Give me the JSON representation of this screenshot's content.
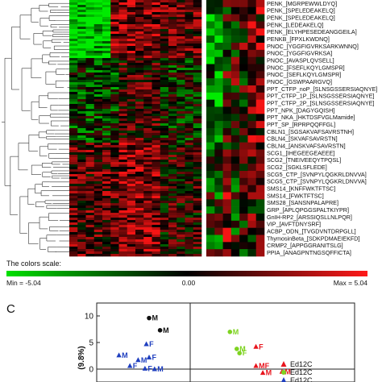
{
  "heatmap": {
    "row_labels": [
      "PENK_[MGRPEWWLDYQ]",
      "PENK_[SPELEDEAKELQ]",
      "PENK_[SPELEDEAKELQ]",
      "PENK_[LEDEAKELQ]",
      "PENK_[ELYHPESEDEANGGEILA]",
      "PENKB_[FPXLKWDNQ]",
      "PNOC_[YGGFIGVRKSARKWNNQ]",
      "PNOC_[YGGFIGVRKSA]",
      "PNOC_[AVASPLQVSELL]",
      "PNOC_[FSEFLKQYLGMSPR]",
      "PNOC_[SEFLKQYLGMSPR]",
      "PNOC_[GSWPAARGVQ]",
      "PPT_CTFP_noP_[SLNSGSSERSIAQNYE]",
      "PPT_CTFP_1P_[SLNSGSSERSIAQNYE]",
      "PPT_CTFP_2P_[SLNSGSSERSIAQNYE]",
      "PPT_NPK_[DAGYGQISH]",
      "PPT_NKA_[HKTDSFVGLMamide]",
      "PPT_SP_[RPRPQQFFGL]",
      "CBLN1_[SGSAKVAFSAVRSTNH]",
      "CBLN4_[SKVAFSAVRSTN]",
      "CBLN4_[ANSKVAFSAVRSTN]",
      "SCG1_[IHEGEEGEAEEE]",
      "SCG2_[TNEIVEEQYTPQSL]",
      "SCG2_[SGKLSFLEDE]",
      "SCG5_CTP_[SVNPYLQGKRLDNVVA]",
      "SCG5_CTP_[SVNPYLQGKRLDNVVA]",
      "SMS14_[KNFFWKTFTSC]",
      "SMS14_[FWKTFTSC]",
      "SMS28_[SANSNPALAPRE]",
      "GRP_[APLQPGGSPALTKIYPR]",
      "GnIH-RP2_[ARSSIQSLLNLPQR]",
      "VIP_[AVFTDNYSRF]",
      "ACBP_ODN_[TVGDVNTDRPGLL]",
      "ThymosinBeta_[SDKPDMAEIEKFD]",
      "CRMP2_[APPGGRANITSLG]",
      "PPIA_[ANAGPNTNGSQFFICTA]"
    ],
    "scale_title": "The colors scale:",
    "scale_min_label": "Min = -5.04",
    "scale_mid_label": "0.00",
    "scale_max_label": "Max = 5.04",
    "colors": {
      "low": "#00e000",
      "mid": "#000000",
      "high": "#ff1a1a"
    }
  },
  "panel_c": {
    "letter": "C",
    "y_axis_label": "(9.8%)",
    "y_ticks": [
      "10",
      "5",
      "0"
    ],
    "legend": [
      {
        "label": "Ed12C",
        "color": "#e8141c",
        "marker": "triangle"
      },
      {
        "label": "Ed12C",
        "color": "#7ed321",
        "marker": "circle"
      },
      {
        "label": "Ed12C",
        "color": "#1f3fbf",
        "marker": "triangle"
      }
    ],
    "points": [
      {
        "label": "M",
        "x": -3.0,
        "y": 9.6,
        "color": "#111111"
      },
      {
        "label": "M",
        "x": -2.2,
        "y": 7.3,
        "color": "#111111"
      },
      {
        "label": "F",
        "x": -3.2,
        "y": 4.7,
        "color": "#1f3fbf"
      },
      {
        "label": "M",
        "x": -5.2,
        "y": 2.6,
        "color": "#1f3fbf"
      },
      {
        "label": "F",
        "x": -3.0,
        "y": 2.2,
        "color": "#1f3fbf"
      },
      {
        "label": "M",
        "x": -3.8,
        "y": 1.7,
        "color": "#1f3fbf"
      },
      {
        "label": "F",
        "x": -4.4,
        "y": 0.6,
        "color": "#1f3fbf"
      },
      {
        "label": "F",
        "x": -3.3,
        "y": 0.1,
        "color": "#1f3fbf"
      },
      {
        "label": "M",
        "x": -2.6,
        "y": 0.0,
        "color": "#1f3fbf"
      },
      {
        "label": "M",
        "x": 2.9,
        "y": 7.0,
        "color": "#7ed321"
      },
      {
        "label": "M",
        "x": 3.4,
        "y": 3.8,
        "color": "#7ed321"
      },
      {
        "label": "F",
        "x": 3.6,
        "y": 3.0,
        "color": "#7ed321"
      },
      {
        "label": "F",
        "x": 4.8,
        "y": 4.2,
        "color": "#e8141c"
      },
      {
        "label": "MF",
        "x": 4.8,
        "y": 0.6,
        "color": "#e8141c"
      },
      {
        "label": "M",
        "x": 5.3,
        "y": -0.7,
        "color": "#e8141c"
      },
      {
        "label": "M",
        "x": 6.7,
        "y": -0.5,
        "color": "#e8141c"
      }
    ]
  }
}
